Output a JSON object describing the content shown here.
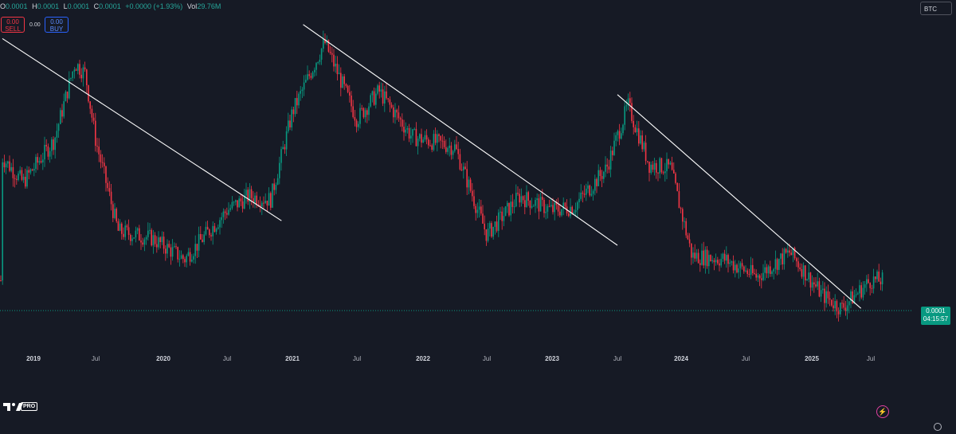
{
  "ohlc": {
    "o_label": "O",
    "o_value": "0.0001",
    "h_label": "H",
    "h_value": "0.0001",
    "l_label": "L",
    "l_value": "0.0001",
    "c_label": "C",
    "c_value": "0.0001",
    "change": "+0.0000 (+1.93%)",
    "vol_label": "Vol",
    "vol_value": "29.76M"
  },
  "trade": {
    "sell_price": "0.00",
    "sell_label": "SELL",
    "spread": "0.00",
    "buy_price": "0.00",
    "buy_label": "BUY"
  },
  "symbol": "BTC",
  "price_tag": {
    "price": "0.0001",
    "countdown": "04:15:57"
  },
  "logo_badge": "PRO",
  "colors": {
    "up": "#089981",
    "down": "#f23645",
    "background": "#161a25",
    "trendline": "#ffffff"
  },
  "time_axis": [
    {
      "label": "2019",
      "year": true
    },
    {
      "label": "Jul",
      "year": false
    },
    {
      "label": "2020",
      "year": true
    },
    {
      "label": "Jul",
      "year": false
    },
    {
      "label": "2021",
      "year": true
    },
    {
      "label": "Jul",
      "year": false
    },
    {
      "label": "2022",
      "year": true
    },
    {
      "label": "Jul",
      "year": false
    },
    {
      "label": "2023",
      "year": true
    },
    {
      "label": "Jul",
      "year": false
    },
    {
      "label": "2024",
      "year": true
    },
    {
      "label": "Jul",
      "year": false
    },
    {
      "label": "2025",
      "year": true
    },
    {
      "label": "Jul",
      "year": false
    }
  ],
  "chart_data": {
    "type": "candlestick",
    "price_key_points": [
      [
        "2018-10",
        0.55
      ],
      [
        "2018-12",
        0.48
      ],
      [
        "2019-03",
        0.6
      ],
      [
        "2019-05",
        0.82
      ],
      [
        "2019-06",
        0.79
      ],
      [
        "2019-07",
        0.6
      ],
      [
        "2019-09",
        0.34
      ],
      [
        "2019-12",
        0.32
      ],
      [
        "2020-03",
        0.26
      ],
      [
        "2020-05",
        0.33
      ],
      [
        "2020-07",
        0.4
      ],
      [
        "2020-09",
        0.44
      ],
      [
        "2020-11",
        0.43
      ],
      [
        "2021-01",
        0.68
      ],
      [
        "2021-04",
        0.88
      ],
      [
        "2021-07",
        0.66
      ],
      [
        "2021-09",
        0.74
      ],
      [
        "2021-12",
        0.61
      ],
      [
        "2022-04",
        0.58
      ],
      [
        "2022-07",
        0.33
      ],
      [
        "2022-10",
        0.44
      ],
      [
        "2023-01",
        0.4
      ],
      [
        "2023-03",
        0.41
      ],
      [
        "2023-06",
        0.52
      ],
      [
        "2023-08",
        0.7
      ],
      [
        "2023-10",
        0.53
      ],
      [
        "2023-12",
        0.52
      ],
      [
        "2024-02",
        0.27
      ],
      [
        "2024-05",
        0.26
      ],
      [
        "2024-08",
        0.21
      ],
      [
        "2024-11",
        0.28
      ],
      [
        "2025-02",
        0.16
      ],
      [
        "2025-04",
        0.12
      ],
      [
        "2025-07",
        0.2
      ]
    ],
    "trendlines": [
      {
        "from": [
          "2018-10",
          0.89
        ],
        "to": [
          "2020-12",
          0.37
        ]
      },
      {
        "from": [
          "2021-02",
          0.93
        ],
        "to": [
          "2023-07",
          0.3
        ]
      },
      {
        "from": [
          "2023-07",
          0.73
        ],
        "to": [
          "2025-06",
          0.12
        ]
      }
    ],
    "current_price": "0.0001"
  }
}
